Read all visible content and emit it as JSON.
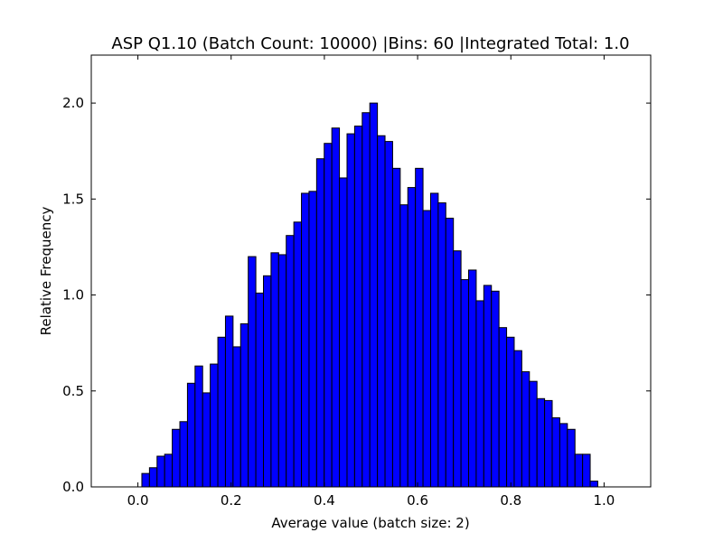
{
  "chart_data": {
    "type": "bar",
    "title": "ASP Q1.10 (Batch Count: 10000) |Bins: 60 |Integrated Total: 1.0",
    "xlabel": "Average value (batch size: 2)",
    "ylabel": "Relative Frequency",
    "xlim": [
      -0.1,
      1.1
    ],
    "ylim": [
      0.0,
      2.25
    ],
    "xticks": [
      0.0,
      0.2,
      0.4,
      0.6,
      0.8,
      1.0
    ],
    "xtick_labels": [
      "0.0",
      "0.2",
      "0.4",
      "0.6",
      "0.8",
      "1.0"
    ],
    "yticks": [
      0.0,
      0.5,
      1.0,
      1.5,
      2.0
    ],
    "ytick_labels": [
      "0.0",
      "0.5",
      "1.0",
      "1.5",
      "2.0"
    ],
    "grid": false,
    "bar_color": "#0000ff",
    "edge_color": "#000000",
    "bin_start": 0.0085,
    "bin_width": 0.0163,
    "values": [
      0.07,
      0.1,
      0.16,
      0.17,
      0.3,
      0.34,
      0.54,
      0.63,
      0.49,
      0.64,
      0.78,
      0.89,
      0.73,
      0.85,
      1.2,
      1.01,
      1.1,
      1.22,
      1.21,
      1.31,
      1.38,
      1.53,
      1.54,
      1.71,
      1.79,
      1.87,
      1.61,
      1.84,
      1.88,
      1.95,
      2.0,
      1.83,
      1.8,
      1.66,
      1.47,
      1.56,
      1.66,
      1.44,
      1.53,
      1.48,
      1.4,
      1.23,
      1.08,
      1.13,
      0.97,
      1.05,
      1.02,
      0.83,
      0.78,
      0.71,
      0.6,
      0.55,
      0.46,
      0.45,
      0.36,
      0.33,
      0.3,
      0.17,
      0.17,
      0.03
    ]
  }
}
